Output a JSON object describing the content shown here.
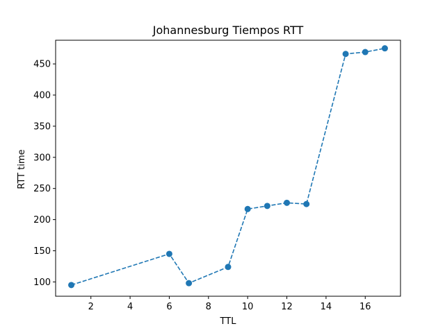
{
  "chart_data": {
    "type": "line",
    "title": "Johannesburg Tiempos RTT",
    "xlabel": "TTL",
    "ylabel": "RTT time",
    "xlim": [
      0.2,
      17.8
    ],
    "ylim": [
      77,
      488
    ],
    "xticks": [
      2,
      4,
      6,
      8,
      10,
      12,
      14,
      16
    ],
    "yticks": [
      100,
      150,
      200,
      250,
      300,
      350,
      400,
      450
    ],
    "grid": false,
    "legend": "none",
    "series": [
      {
        "color": "#1f77b4",
        "line_style": "dashed",
        "marker": "circle",
        "x": [
          1,
          6,
          7,
          9,
          10,
          11,
          12,
          13,
          15,
          16,
          17
        ],
        "y": [
          95,
          145,
          98,
          124,
          217,
          222,
          227,
          225,
          466,
          469,
          475
        ]
      }
    ]
  }
}
